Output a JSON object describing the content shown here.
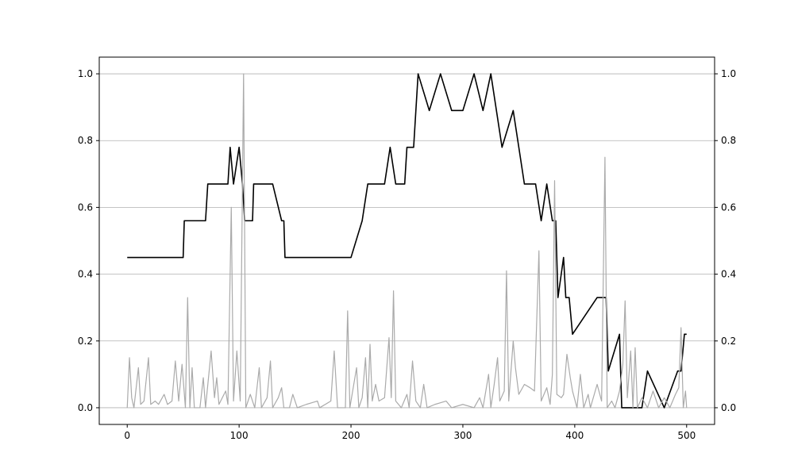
{
  "chart_data": {
    "type": "line",
    "title": "",
    "xlabel": "",
    "ylabel": "",
    "xlim": [
      -25,
      525
    ],
    "ylim": [
      -0.05,
      1.05
    ],
    "grid": "horizontal",
    "right_axis_mirrored": true,
    "x_ticks": [
      0,
      100,
      200,
      300,
      400,
      500
    ],
    "x_tick_labels": [
      "0",
      "100",
      "200",
      "300",
      "400",
      "500"
    ],
    "y_ticks": [
      0.0,
      0.2,
      0.4,
      0.6,
      0.8,
      1.0
    ],
    "y_tick_labels": [
      "0.0",
      "0.2",
      "0.4",
      "0.6",
      "0.8",
      "1.0"
    ],
    "series": [
      {
        "role": "stepped-level",
        "color": "#000000",
        "points": [
          [
            0,
            0.45
          ],
          [
            50,
            0.45
          ],
          [
            51,
            0.56
          ],
          [
            58,
            0.56
          ],
          [
            60,
            0.56
          ],
          [
            70,
            0.56
          ],
          [
            72,
            0.67
          ],
          [
            90,
            0.67
          ],
          [
            92,
            0.78
          ],
          [
            95,
            0.67
          ],
          [
            100,
            0.78
          ],
          [
            103,
            0.67
          ],
          [
            105,
            0.56
          ],
          [
            112,
            0.56
          ],
          [
            113,
            0.67
          ],
          [
            130,
            0.67
          ],
          [
            138,
            0.56
          ],
          [
            140,
            0.56
          ],
          [
            141,
            0.45
          ],
          [
            200,
            0.45
          ],
          [
            210,
            0.56
          ],
          [
            215,
            0.67
          ],
          [
            230,
            0.67
          ],
          [
            235,
            0.78
          ],
          [
            240,
            0.67
          ],
          [
            248,
            0.67
          ],
          [
            250,
            0.78
          ],
          [
            256,
            0.78
          ],
          [
            258,
            0.89
          ],
          [
            260,
            1.0
          ],
          [
            270,
            0.89
          ],
          [
            280,
            1.0
          ],
          [
            290,
            0.89
          ],
          [
            300,
            0.89
          ],
          [
            310,
            1.0
          ],
          [
            318,
            0.89
          ],
          [
            325,
            1.0
          ],
          [
            330,
            0.89
          ],
          [
            335,
            0.78
          ],
          [
            345,
            0.89
          ],
          [
            350,
            0.78
          ],
          [
            355,
            0.67
          ],
          [
            365,
            0.67
          ],
          [
            370,
            0.56
          ],
          [
            375,
            0.67
          ],
          [
            380,
            0.56
          ],
          [
            383,
            0.56
          ],
          [
            385,
            0.33
          ],
          [
            390,
            0.45
          ],
          [
            392,
            0.33
          ],
          [
            395,
            0.33
          ],
          [
            398,
            0.22
          ],
          [
            420,
            0.33
          ],
          [
            428,
            0.33
          ],
          [
            430,
            0.11
          ],
          [
            440,
            0.22
          ],
          [
            442,
            0.0
          ],
          [
            460,
            0.0
          ],
          [
            465,
            0.11
          ],
          [
            480,
            0.0
          ],
          [
            492,
            0.11
          ],
          [
            495,
            0.11
          ],
          [
            498,
            0.22
          ],
          [
            500,
            0.22
          ]
        ]
      },
      {
        "role": "spikes",
        "color": "#aaaaaa",
        "points": [
          [
            0,
            0.0
          ],
          [
            2,
            0.15
          ],
          [
            4,
            0.03
          ],
          [
            6,
            0.0
          ],
          [
            10,
            0.12
          ],
          [
            12,
            0.01
          ],
          [
            15,
            0.02
          ],
          [
            19,
            0.15
          ],
          [
            21,
            0.01
          ],
          [
            25,
            0.02
          ],
          [
            28,
            0.01
          ],
          [
            33,
            0.04
          ],
          [
            36,
            0.01
          ],
          [
            40,
            0.02
          ],
          [
            43,
            0.14
          ],
          [
            46,
            0.02
          ],
          [
            49,
            0.13
          ],
          [
            52,
            0.0
          ],
          [
            54,
            0.33
          ],
          [
            56,
            0.0
          ],
          [
            58,
            0.12
          ],
          [
            60,
            0.0
          ],
          [
            65,
            0.0
          ],
          [
            68,
            0.09
          ],
          [
            70,
            0.0
          ],
          [
            75,
            0.17
          ],
          [
            78,
            0.03
          ],
          [
            80,
            0.09
          ],
          [
            82,
            0.01
          ],
          [
            88,
            0.05
          ],
          [
            90,
            0.01
          ],
          [
            93,
            0.6
          ],
          [
            95,
            0.02
          ],
          [
            98,
            0.17
          ],
          [
            101,
            0.02
          ],
          [
            104,
            1.0
          ],
          [
            106,
            0.0
          ],
          [
            110,
            0.04
          ],
          [
            114,
            0.0
          ],
          [
            118,
            0.12
          ],
          [
            120,
            0.0
          ],
          [
            125,
            0.03
          ],
          [
            128,
            0.14
          ],
          [
            130,
            0.0
          ],
          [
            135,
            0.03
          ],
          [
            138,
            0.06
          ],
          [
            140,
            0.0
          ],
          [
            145,
            0.0
          ],
          [
            148,
            0.04
          ],
          [
            152,
            0.0
          ],
          [
            160,
            0.01
          ],
          [
            170,
            0.02
          ],
          [
            172,
            0.0
          ],
          [
            182,
            0.02
          ],
          [
            185,
            0.17
          ],
          [
            188,
            0.0
          ],
          [
            195,
            0.0
          ],
          [
            197,
            0.29
          ],
          [
            199,
            0.0
          ],
          [
            205,
            0.12
          ],
          [
            207,
            0.0
          ],
          [
            210,
            0.03
          ],
          [
            213,
            0.15
          ],
          [
            215,
            0.0
          ],
          [
            217,
            0.19
          ],
          [
            219,
            0.02
          ],
          [
            222,
            0.07
          ],
          [
            225,
            0.02
          ],
          [
            230,
            0.03
          ],
          [
            234,
            0.21
          ],
          [
            236,
            0.03
          ],
          [
            238,
            0.35
          ],
          [
            240,
            0.02
          ],
          [
            245,
            0.0
          ],
          [
            250,
            0.04
          ],
          [
            252,
            0.0
          ],
          [
            255,
            0.14
          ],
          [
            258,
            0.02
          ],
          [
            262,
            0.0
          ],
          [
            265,
            0.07
          ],
          [
            268,
            0.0
          ],
          [
            275,
            0.01
          ],
          [
            285,
            0.02
          ],
          [
            290,
            0.0
          ],
          [
            300,
            0.01
          ],
          [
            310,
            0.0
          ],
          [
            315,
            0.03
          ],
          [
            318,
            0.0
          ],
          [
            323,
            0.1
          ],
          [
            325,
            0.0
          ],
          [
            328,
            0.07
          ],
          [
            331,
            0.15
          ],
          [
            333,
            0.02
          ],
          [
            337,
            0.05
          ],
          [
            339,
            0.41
          ],
          [
            341,
            0.02
          ],
          [
            345,
            0.2
          ],
          [
            347,
            0.12
          ],
          [
            350,
            0.04
          ],
          [
            355,
            0.07
          ],
          [
            360,
            0.06
          ],
          [
            364,
            0.05
          ],
          [
            368,
            0.47
          ],
          [
            370,
            0.02
          ],
          [
            375,
            0.06
          ],
          [
            378,
            0.01
          ],
          [
            380,
            0.1
          ],
          [
            382,
            0.68
          ],
          [
            384,
            0.04
          ],
          [
            388,
            0.03
          ],
          [
            390,
            0.04
          ],
          [
            393,
            0.16
          ],
          [
            396,
            0.09
          ],
          [
            398,
            0.05
          ],
          [
            402,
            0.0
          ],
          [
            405,
            0.1
          ],
          [
            408,
            0.0
          ],
          [
            412,
            0.04
          ],
          [
            414,
            0.0
          ],
          [
            420,
            0.07
          ],
          [
            424,
            0.02
          ],
          [
            427,
            0.75
          ],
          [
            429,
            0.0
          ],
          [
            433,
            0.02
          ],
          [
            436,
            0.0
          ],
          [
            440,
            0.05
          ],
          [
            443,
            0.13
          ],
          [
            445,
            0.32
          ],
          [
            447,
            0.03
          ],
          [
            450,
            0.17
          ],
          [
            452,
            0.0
          ],
          [
            454,
            0.18
          ],
          [
            456,
            0.0
          ],
          [
            460,
            0.03
          ],
          [
            465,
            0.0
          ],
          [
            470,
            0.05
          ],
          [
            475,
            0.0
          ],
          [
            480,
            0.03
          ],
          [
            485,
            0.0
          ],
          [
            490,
            0.04
          ],
          [
            493,
            0.06
          ],
          [
            495,
            0.24
          ],
          [
            497,
            0.0
          ],
          [
            499,
            0.05
          ],
          [
            500,
            0.0
          ]
        ]
      }
    ]
  }
}
